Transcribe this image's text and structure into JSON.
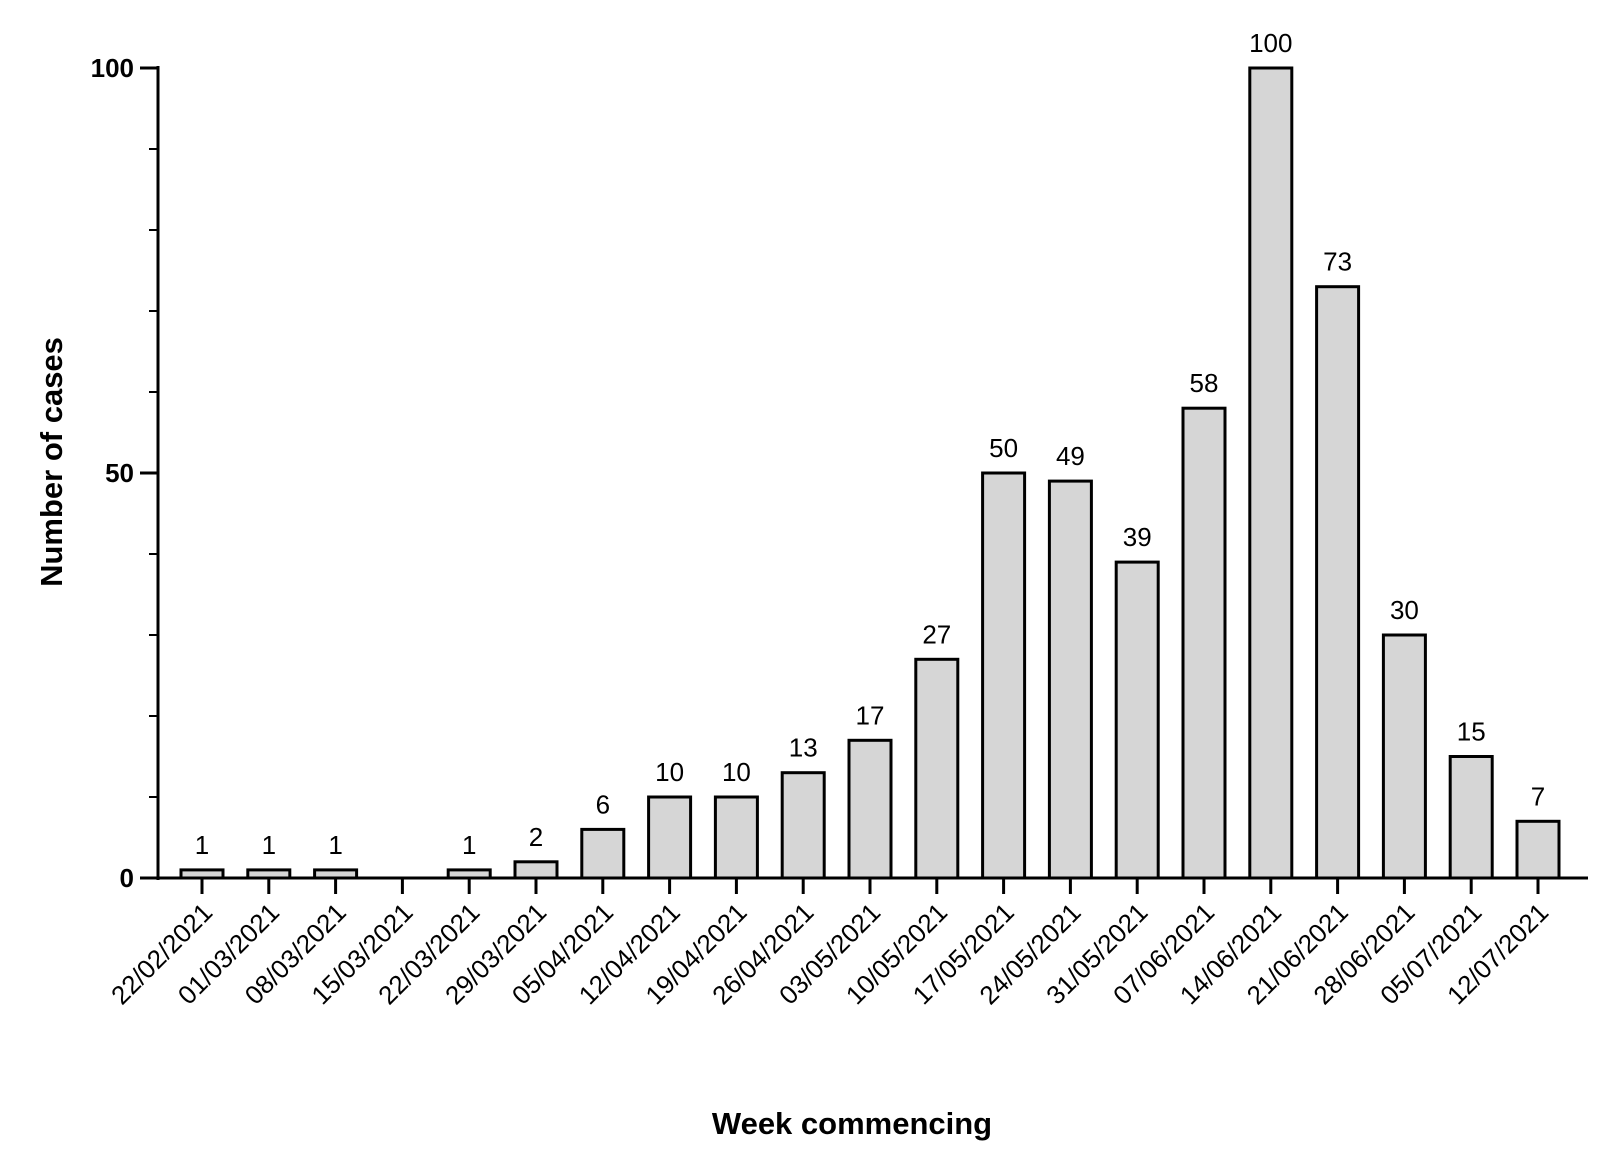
{
  "chart_data": {
    "type": "bar",
    "title": "",
    "xlabel": "Week commencing",
    "ylabel": "Number of cases",
    "ylim": [
      0,
      100
    ],
    "yticks": [
      0,
      50,
      100
    ],
    "y_minor_step": 10,
    "grid": false,
    "legend": "none",
    "bar_color": "#d6d6d6",
    "edge_color": "#000000",
    "categories": [
      "22/02/2021",
      "01/03/2021",
      "08/03/2021",
      "15/03/2021",
      "22/03/2021",
      "29/03/2021",
      "05/04/2021",
      "12/04/2021",
      "19/04/2021",
      "26/04/2021",
      "03/05/2021",
      "10/05/2021",
      "17/05/2021",
      "24/05/2021",
      "31/05/2021",
      "07/06/2021",
      "14/06/2021",
      "21/06/2021",
      "28/06/2021",
      "05/07/2021",
      "12/07/2021"
    ],
    "values": [
      1,
      1,
      1,
      0,
      1,
      2,
      6,
      10,
      10,
      13,
      17,
      27,
      50,
      49,
      39,
      58,
      100,
      73,
      30,
      15,
      7
    ],
    "data_labels": [
      "1",
      "1",
      "1",
      "",
      "1",
      "2",
      "6",
      "10",
      "10",
      "13",
      "17",
      "27",
      "50",
      "49",
      "39",
      "58",
      "100",
      "73",
      "30",
      "15",
      "7"
    ]
  }
}
